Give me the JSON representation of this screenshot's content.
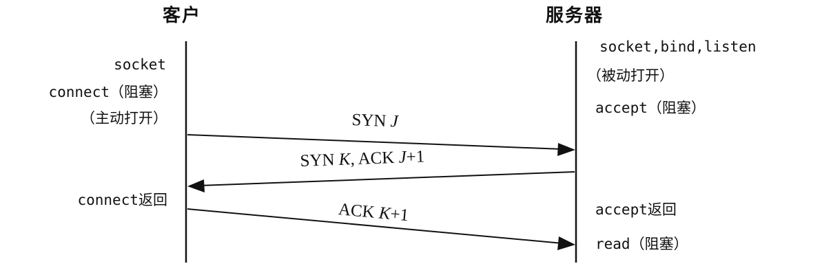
{
  "client": {
    "title": "客户",
    "calls": {
      "socket": "socket",
      "connect_block": "connect（阻塞）",
      "active_open": "（主动打开）",
      "connect_return": "connect返回"
    }
  },
  "server": {
    "title": "服务器",
    "calls": {
      "socket_bind_listen": "socket,bind,listen",
      "passive_open": "（被动打开）",
      "accept_block": "accept（阻塞）",
      "accept_return": "accept返回",
      "read_block": "read（阻塞）"
    }
  },
  "messages": [
    {
      "from": "client",
      "to": "server",
      "text": "SYN J"
    },
    {
      "from": "server",
      "to": "client",
      "text": "SYN K, ACK J+1"
    },
    {
      "from": "client",
      "to": "server",
      "text": "ACK K+1"
    }
  ],
  "colors": {
    "ink": "#111111",
    "background": "#ffffff"
  }
}
